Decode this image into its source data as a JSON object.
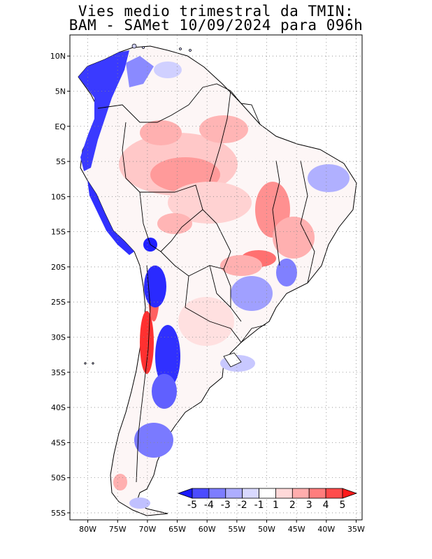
{
  "title": {
    "line1": "Vies medio trimestral da TMIN:",
    "line2": "BAM - SAMet 10/09/2024  para 096h"
  },
  "map": {
    "lon_range": [
      -83,
      -34
    ],
    "lat_range": [
      -56,
      13
    ],
    "x_ticks": [
      "80W",
      "75W",
      "70W",
      "65W",
      "60W",
      "55W",
      "50W",
      "45W",
      "40W",
      "35W"
    ],
    "y_ticks": [
      "10N",
      "5N",
      "EQ",
      "5S",
      "10S",
      "15S",
      "20S",
      "25S",
      "30S",
      "35S",
      "40S",
      "45S",
      "50S",
      "55S"
    ],
    "gridlines": "dotted"
  },
  "colorbar": {
    "labels": [
      "-5",
      "-4",
      "-3",
      "-2",
      "-1",
      "1",
      "2",
      "3",
      "4",
      "5"
    ],
    "colors": [
      "#1a1aff",
      "#4b4bff",
      "#7d7dff",
      "#adadff",
      "#d9d9ff",
      "#ffffff",
      "#ffd9d9",
      "#ffadad",
      "#ff7d7d",
      "#ff4b4b",
      "#ff1a1a"
    ]
  },
  "colors": {
    "strong_blue": "#2020ff",
    "mid_blue": "#7070ff",
    "light_blue": "#c8c8ff",
    "light_red": "#ffc8c8",
    "mid_red": "#ff8080",
    "strong_red": "#ff2020",
    "border": "#000000"
  }
}
